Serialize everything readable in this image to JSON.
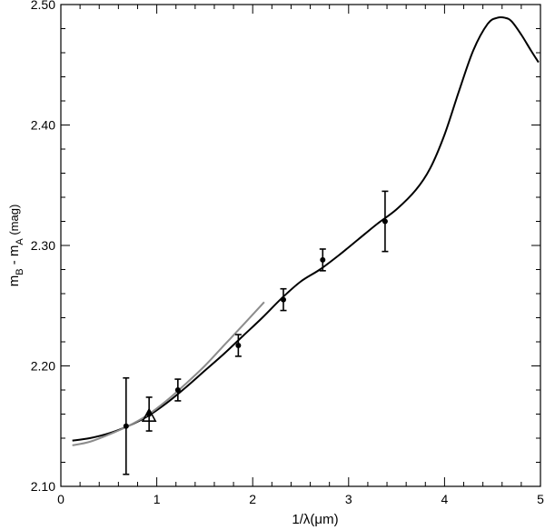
{
  "chart_data": {
    "type": "scatter",
    "xlabel": "1/λ(μm)",
    "ylabel": "m_B - m_A (mag)",
    "ylabel_parts": {
      "m1": "m",
      "s1": "B",
      "sep": " - ",
      "m2": "m",
      "s2": "A",
      "unit": " (mag)"
    },
    "xlim": [
      0,
      5
    ],
    "ylim": [
      2.1,
      2.5
    ],
    "x_ticks": [
      "0",
      "1",
      "2",
      "3",
      "4",
      "5"
    ],
    "y_ticks": [
      "2.10",
      "2.20",
      "2.30",
      "2.40",
      "2.50"
    ],
    "grid": false,
    "points": [
      {
        "x": 0.68,
        "y": 2.15,
        "err": 0.04
      },
      {
        "x": 0.92,
        "y": 2.16,
        "err": 0.014
      },
      {
        "x": 1.22,
        "y": 2.18,
        "err": 0.009
      },
      {
        "x": 1.85,
        "y": 2.217,
        "err": 0.009
      },
      {
        "x": 2.32,
        "y": 2.255,
        "err": 0.009
      },
      {
        "x": 2.73,
        "y": 2.288,
        "err": 0.009
      },
      {
        "x": 3.38,
        "y": 2.32,
        "err": 0.025
      }
    ],
    "triangle_point": {
      "x": 0.92,
      "y": 2.158
    },
    "series": [
      {
        "style": "black",
        "x": [
          0.12,
          0.3,
          0.5,
          0.7,
          0.9,
          1.1,
          1.3,
          1.5,
          1.7,
          1.9,
          2.1,
          2.3,
          2.5,
          2.7,
          2.9,
          3.1,
          3.3,
          3.5,
          3.7,
          3.85,
          4.0,
          4.15,
          4.3,
          4.45,
          4.55,
          4.63,
          4.7,
          4.8,
          4.9,
          4.98
        ],
        "y": [
          2.138,
          2.14,
          2.144,
          2.15,
          2.158,
          2.169,
          2.182,
          2.196,
          2.21,
          2.225,
          2.24,
          2.256,
          2.27,
          2.28,
          2.292,
          2.305,
          2.318,
          2.33,
          2.346,
          2.364,
          2.392,
          2.428,
          2.462,
          2.484,
          2.489,
          2.489,
          2.486,
          2.475,
          2.462,
          2.452
        ]
      },
      {
        "style": "gray",
        "x": [
          0.12,
          0.3,
          0.5,
          0.7,
          0.9,
          1.1,
          1.3,
          1.5,
          1.7,
          1.9,
          2.12
        ],
        "y": [
          2.134,
          2.137,
          2.143,
          2.15,
          2.159,
          2.171,
          2.185,
          2.2,
          2.217,
          2.234,
          2.253
        ]
      }
    ],
    "colors": {
      "main": "#000000",
      "alt": "#8c8c8c"
    }
  }
}
